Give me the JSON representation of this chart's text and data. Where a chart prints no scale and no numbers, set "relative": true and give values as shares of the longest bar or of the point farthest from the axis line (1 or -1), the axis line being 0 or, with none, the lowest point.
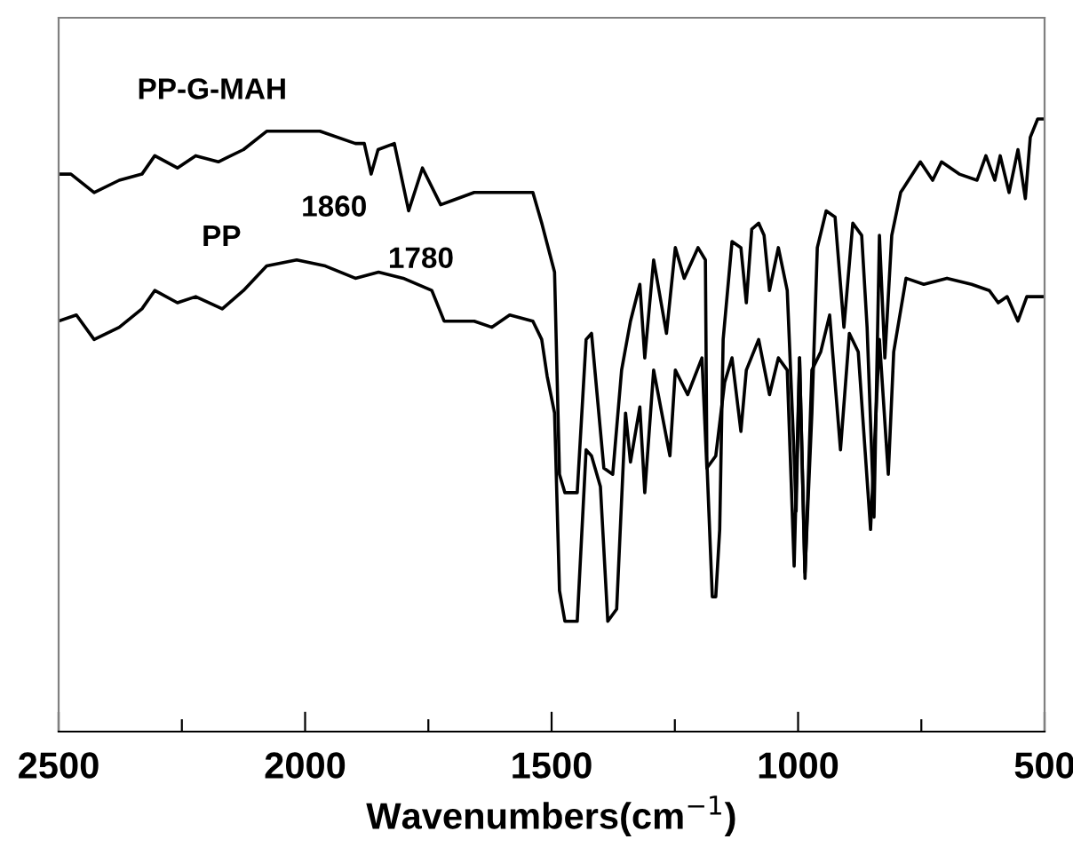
{
  "chart_data": {
    "type": "line",
    "relative": true,
    "xlabel": "Wavenumbers(cm$^{−1}$)",
    "xlim": [
      2500,
      500
    ],
    "xticks": [
      2500,
      {
        "value": 2250,
        "label": null
      },
      2000,
      {
        "value": 1750,
        "label": null
      },
      1500,
      {
        "value": 1250,
        "label": null
      },
      1000,
      {
        "value": 750,
        "label": null
      },
      500
    ],
    "grid": false,
    "legend": false,
    "marker": "none",
    "line_style": "solid",
    "tick_labels": "x",
    "annotations": [
      {
        "text": "1860",
        "x": 1866,
        "y": 0.91
      },
      {
        "text": "1780",
        "x": 1790,
        "y": 0.85
      }
    ],
    "series": [
      {
        "name": "PP-G-MAH",
        "color": "#000000",
        "x": [
          2499,
          2475,
          2428,
          2377,
          2331,
          2305,
          2259,
          2222,
          2176,
          2125,
          2078,
          2017,
          1970,
          1898,
          1880,
          1866,
          1852,
          1819,
          1790,
          1762,
          1725,
          1657,
          1585,
          1538,
          1520,
          1494,
          1484,
          1473,
          1448,
          1430,
          1419,
          1394,
          1376,
          1358,
          1340,
          1321,
          1311,
          1293,
          1267,
          1249,
          1231,
          1203,
          1188,
          1185,
          1174,
          1167,
          1159,
          1152,
          1134,
          1116,
          1105,
          1094,
          1080,
          1069,
          1058,
          1040,
          1022,
          1008,
          1004,
          997,
          986,
          972,
          961,
          943,
          925,
          907,
          889,
          871,
          860,
          846,
          835,
          824,
          810,
          792,
          752,
          727,
          709,
          673,
          637,
          619,
          601,
          590,
          572,
          554,
          539,
          529,
          514,
          500
        ],
        "values": [
          0.91,
          0.91,
          0.88,
          0.9,
          0.91,
          0.94,
          0.92,
          0.94,
          0.93,
          0.95,
          0.98,
          0.98,
          0.98,
          0.96,
          0.96,
          0.91,
          0.95,
          0.96,
          0.85,
          0.92,
          0.86,
          0.88,
          0.88,
          0.88,
          0.83,
          0.75,
          0.42,
          0.39,
          0.39,
          0.64,
          0.65,
          0.43,
          0.42,
          0.59,
          0.67,
          0.73,
          0.61,
          0.77,
          0.65,
          0.79,
          0.74,
          0.79,
          0.77,
          0.44,
          0.22,
          0.22,
          0.33,
          0.64,
          0.8,
          0.79,
          0.7,
          0.82,
          0.83,
          0.81,
          0.72,
          0.79,
          0.72,
          0.45,
          0.36,
          0.61,
          0.26,
          0.52,
          0.79,
          0.85,
          0.84,
          0.66,
          0.83,
          0.81,
          0.66,
          0.35,
          0.81,
          0.61,
          0.81,
          0.88,
          0.93,
          0.9,
          0.93,
          0.91,
          0.9,
          0.94,
          0.9,
          0.94,
          0.88,
          0.95,
          0.87,
          0.97,
          1.0,
          1.0
        ]
      },
      {
        "name": "PP",
        "color": "#000000",
        "x": [
          2500,
          2464,
          2428,
          2377,
          2331,
          2305,
          2259,
          2222,
          2168,
          2125,
          2078,
          2017,
          1959,
          1898,
          1851,
          1801,
          1743,
          1718,
          1657,
          1621,
          1585,
          1538,
          1520,
          1509,
          1494,
          1484,
          1473,
          1448,
          1430,
          1419,
          1401,
          1386,
          1368,
          1350,
          1340,
          1321,
          1311,
          1293,
          1260,
          1249,
          1224,
          1195,
          1185,
          1167,
          1149,
          1134,
          1116,
          1105,
          1080,
          1058,
          1040,
          1022,
          1008,
          997,
          986,
          972,
          954,
          936,
          914,
          896,
          878,
          853,
          835,
          817,
          806,
          781,
          745,
          698,
          648,
          612,
          594,
          576,
          554,
          536,
          514,
          500
        ],
        "values": [
          0.67,
          0.68,
          0.64,
          0.66,
          0.69,
          0.72,
          0.7,
          0.71,
          0.69,
          0.72,
          0.76,
          0.77,
          0.76,
          0.74,
          0.75,
          0.74,
          0.72,
          0.67,
          0.67,
          0.66,
          0.68,
          0.67,
          0.64,
          0.58,
          0.52,
          0.23,
          0.18,
          0.18,
          0.46,
          0.45,
          0.4,
          0.18,
          0.2,
          0.52,
          0.44,
          0.53,
          0.39,
          0.59,
          0.45,
          0.59,
          0.55,
          0.61,
          0.43,
          0.45,
          0.57,
          0.61,
          0.49,
          0.59,
          0.64,
          0.55,
          0.61,
          0.59,
          0.27,
          0.61,
          0.25,
          0.59,
          0.62,
          0.68,
          0.46,
          0.65,
          0.62,
          0.33,
          0.64,
          0.42,
          0.62,
          0.74,
          0.73,
          0.74,
          0.73,
          0.72,
          0.7,
          0.71,
          0.67,
          0.71,
          0.71,
          0.71
        ]
      }
    ]
  }
}
